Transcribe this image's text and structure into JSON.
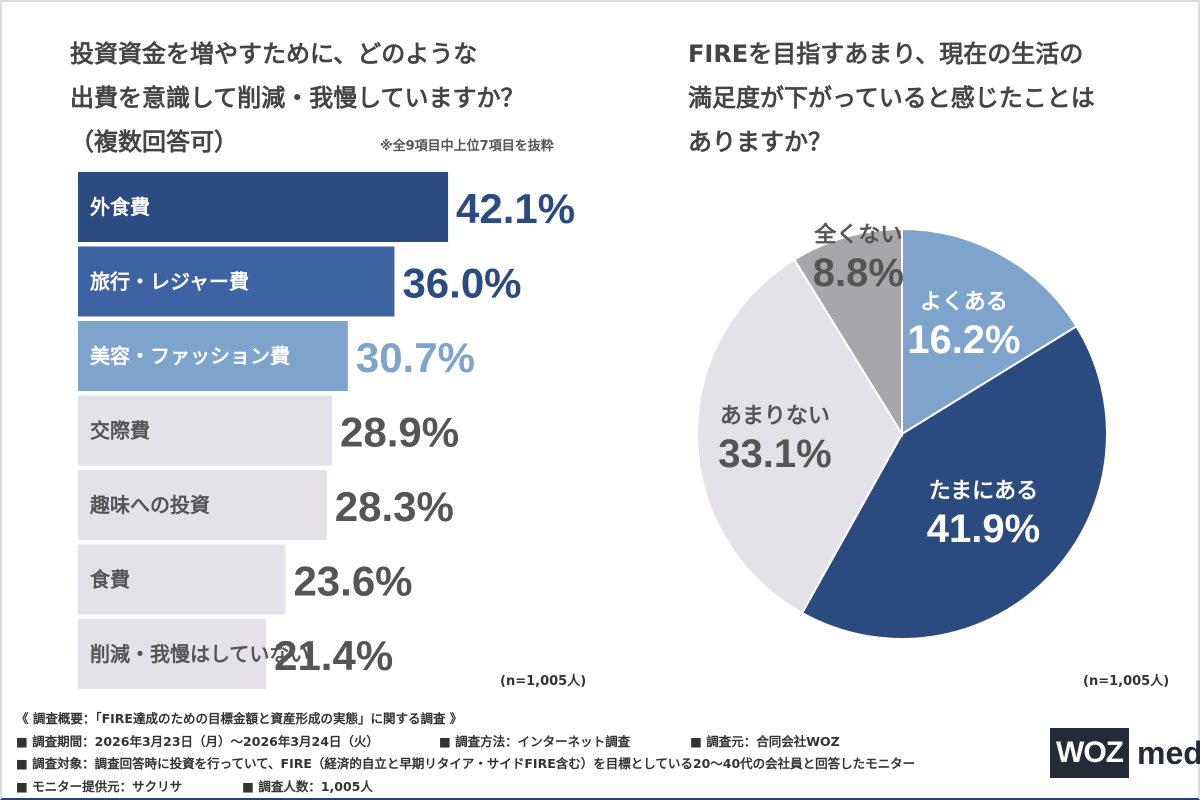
{
  "chart_data": [
    {
      "type": "bar",
      "orientation": "horizontal",
      "title": "投資資金を増やすために、どのような出費を意識して削減・我慢していますか？（複数回答可）",
      "note": "※全9項目中上位7項目を抜粋",
      "sample": "(n=1,005人)",
      "categories": [
        "外食費",
        "旅行・レジャー費",
        "美容・ファッション費",
        "交際費",
        "趣味への投資",
        "食費",
        "削減・我慢はしていない"
      ],
      "values": [
        42.1,
        36.0,
        30.7,
        28.9,
        28.3,
        23.6,
        21.4
      ],
      "labels": [
        "42.1%",
        "36.0%",
        "30.7%",
        "28.9%",
        "28.3%",
        "23.6%",
        "21.4%"
      ],
      "colors": [
        "#2b4a80",
        "#3e63a3",
        "#7ea3cc",
        "#e4e2e8",
        "#e4e2e8",
        "#e4e2e8",
        "#e4e2e8"
      ],
      "value_colors": [
        "#2b4a80",
        "#2b4a80",
        "#7ea3cc",
        "#555555",
        "#555555",
        "#555555",
        "#555555"
      ],
      "unit": "%"
    },
    {
      "type": "pie",
      "title": "FIREを目指すあまり、現在の生活の満足度が下がっていると感じたことはありますか？",
      "sample": "(n=1,005人)",
      "categories": [
        "よくある",
        "たまにある",
        "あまりない",
        "全くない"
      ],
      "values": [
        16.2,
        41.9,
        33.1,
        8.8
      ],
      "labels": [
        "16.2%",
        "41.9%",
        "33.1%",
        "8.8%"
      ],
      "colors": [
        "#7ea3cc",
        "#2b4a80",
        "#e4e2e8",
        "#a9a6ab"
      ]
    }
  ],
  "q1_lines": [
    "投資資金を増やすために、どのような",
    "出費を意識して削減・我慢していますか？",
    "（複数回答可）"
  ],
  "q2_lines": [
    "FIREを目指すあまり、現在の生活の",
    "満足度が下がっていると感じたことは",
    "ありますか？"
  ],
  "footer": {
    "summary": "《 調査概要：「FIRE達成のための目標金額と資産形成の実態」に関する調査 》",
    "period": "■ 調査期間：2026年3月23日（月）～2026年3月24日（火）",
    "method": "■ 調査方法：インターネット調査",
    "org": "■ 調査元：合同会社WOZ",
    "target": "■ 調査対象：調査回答時に投資を行っていて、FIRE（経済的自立と早期リタイア・サイドFIRE含む）を目標としている20～40代の会社員と回答したモニター",
    "provider": "■ モニター提供元：サクリサ",
    "count": "■ 調査人数：1,005人"
  },
  "logo": "WOZ media"
}
